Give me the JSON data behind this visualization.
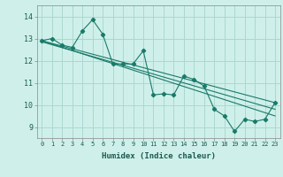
{
  "xlabel": "Humidex (Indice chaleur)",
  "ylabel": "",
  "bg_color": "#cff0ea",
  "grid_color": "#aad8d0",
  "line_color": "#1a7a6a",
  "xlim": [
    -0.5,
    23.5
  ],
  "ylim": [
    8.5,
    14.5
  ],
  "xticks": [
    0,
    1,
    2,
    3,
    4,
    5,
    6,
    7,
    8,
    9,
    10,
    11,
    12,
    13,
    14,
    15,
    16,
    17,
    18,
    19,
    20,
    21,
    22,
    23
  ],
  "yticks": [
    9,
    10,
    11,
    12,
    13,
    14
  ],
  "series1_x": [
    0,
    1,
    2,
    3,
    4,
    5,
    6,
    7,
    8,
    9,
    10,
    11,
    12,
    13,
    14,
    15,
    16,
    17,
    18,
    19,
    20,
    21,
    22,
    23
  ],
  "series1_y": [
    12.9,
    13.0,
    12.7,
    12.6,
    13.35,
    13.85,
    13.2,
    11.85,
    11.85,
    11.85,
    12.45,
    10.45,
    10.5,
    10.45,
    11.3,
    11.15,
    10.85,
    9.8,
    9.5,
    8.8,
    9.35,
    9.25,
    9.35,
    10.1
  ],
  "series2_x": [
    0,
    23
  ],
  "series2_y": [
    12.9,
    9.5
  ],
  "series3_x": [
    0,
    23
  ],
  "series3_y": [
    12.9,
    10.1
  ],
  "series4_x": [
    0,
    23
  ],
  "series4_y": [
    12.85,
    9.8
  ]
}
